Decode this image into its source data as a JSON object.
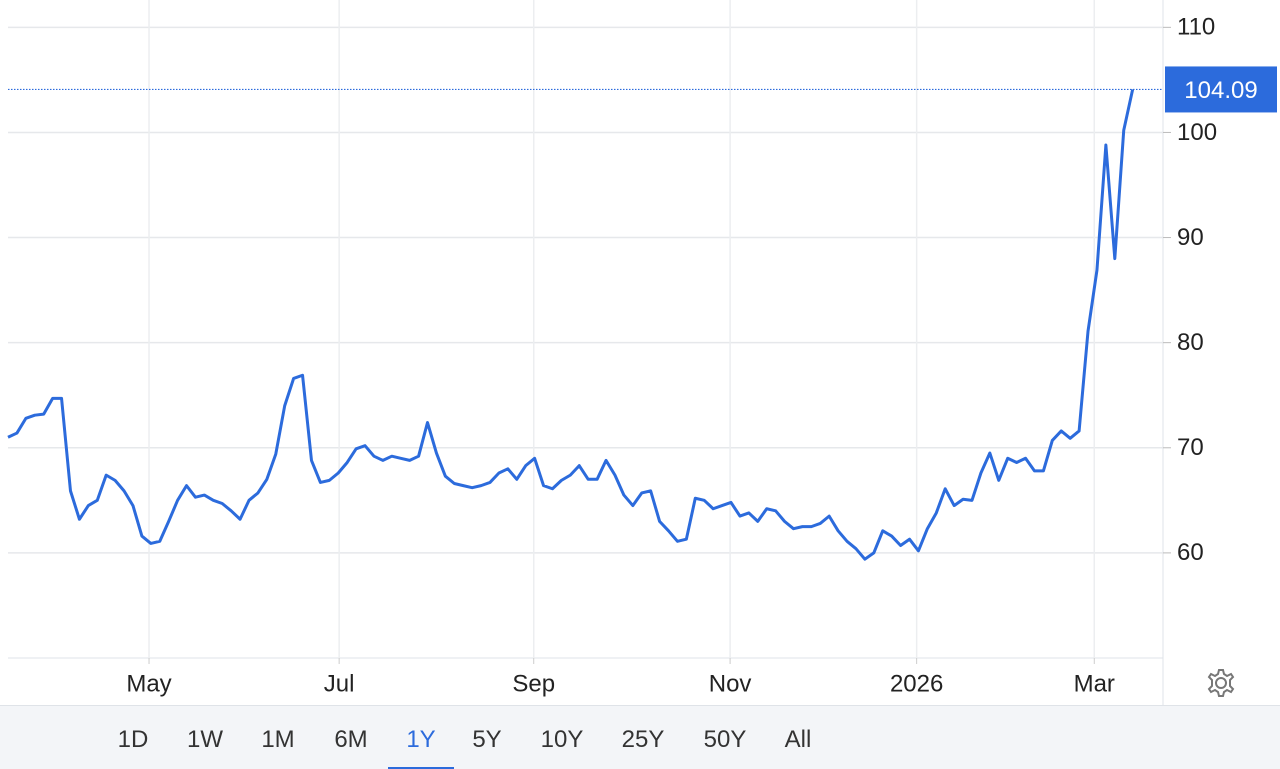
{
  "chart_data": {
    "type": "line",
    "xlim": [
      0,
      129.4
    ],
    "xticks": [
      {
        "value": 15.8,
        "label": "May"
      },
      {
        "value": 37.1,
        "label": "Jul"
      },
      {
        "value": 58.9,
        "label": "Sep"
      },
      {
        "value": 80.9,
        "label": "Nov"
      },
      {
        "value": 101.8,
        "label": "2026"
      },
      {
        "value": 121.7,
        "label": "Mar"
      }
    ],
    "ylim": [
      50,
      112.6
    ],
    "yticks": [
      60,
      70,
      80,
      90,
      100,
      110
    ],
    "grid": true,
    "color": "#2c6bdc",
    "values": [
      71.0,
      71.4,
      72.8,
      73.1,
      73.2,
      74.7,
      74.7,
      65.9,
      63.2,
      64.5,
      65.0,
      67.4,
      66.9,
      65.9,
      64.5,
      61.6,
      60.9,
      61.1,
      63.0,
      65.0,
      66.4,
      65.3,
      65.5,
      65.0,
      64.7,
      64.0,
      63.2,
      65.0,
      65.7,
      67.0,
      69.4,
      74.0,
      76.6,
      76.9,
      68.8,
      66.7,
      66.9,
      67.6,
      68.6,
      69.9,
      70.2,
      69.2,
      68.8,
      69.2,
      69.0,
      68.8,
      69.2,
      72.4,
      69.5,
      67.3,
      66.6,
      66.4,
      66.2,
      66.4,
      66.7,
      67.6,
      68.0,
      67.0,
      68.3,
      69.0,
      66.4,
      66.1,
      66.9,
      67.4,
      68.3,
      67.0,
      67.0,
      68.8,
      67.4,
      65.5,
      64.5,
      65.7,
      65.9,
      63.0,
      62.1,
      61.1,
      61.3,
      65.2,
      65.0,
      64.2,
      64.5,
      64.8,
      63.5,
      63.8,
      63.0,
      64.2,
      64.0,
      63.0,
      62.3,
      62.5,
      62.5,
      62.8,
      63.5,
      62.1,
      61.1,
      60.4,
      59.4,
      60.0,
      62.1,
      61.6,
      60.7,
      61.3,
      60.2,
      62.3,
      63.8,
      66.1,
      64.5,
      65.1,
      65.0,
      67.6,
      69.5,
      66.9,
      69.0,
      68.6,
      69.0,
      67.8,
      67.8,
      70.7,
      71.6,
      70.9,
      71.6,
      81.1,
      86.9,
      98.8,
      88.0,
      100.2,
      104.09
    ]
  },
  "range_buttons": [
    "1D",
    "1W",
    "1M",
    "6M",
    "1Y",
    "5Y",
    "10Y",
    "25Y",
    "50Y",
    "All"
  ],
  "selected_range": "1Y"
}
